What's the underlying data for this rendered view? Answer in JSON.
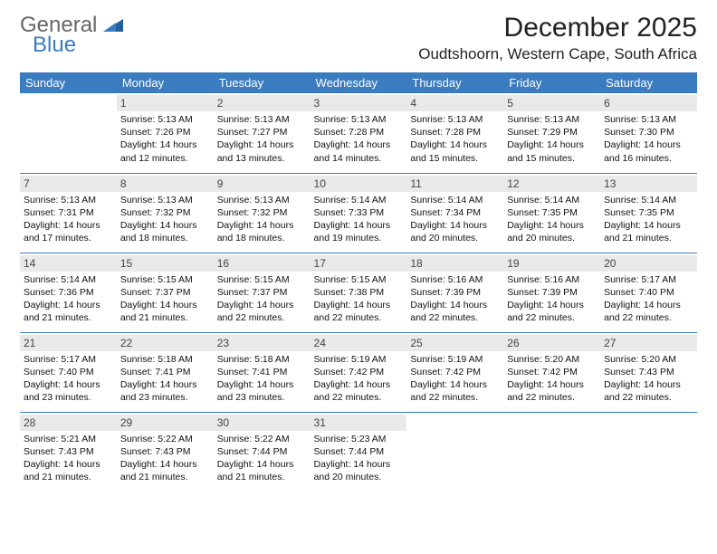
{
  "brand": {
    "line1": "General",
    "line2": "Blue"
  },
  "title": "December 2025",
  "location": "Oudtshoorn, Western Cape, South Africa",
  "colors": {
    "header_bg": "#3b7bbf",
    "header_text": "#ffffff",
    "daynum_bg": "#e9e9e9",
    "row_border": "#3b7bbf",
    "page_bg": "#ffffff",
    "body_text": "#111111",
    "title_text": "#222222",
    "brand_gray": "#666666",
    "brand_blue": "#3b7bbf"
  },
  "fonts": {
    "title_size_pt": 30,
    "location_size_pt": 17,
    "dayhead_size_pt": 13,
    "daynum_size_pt": 12,
    "cell_size_pt": 10.5
  },
  "calendar": {
    "type": "table",
    "columns": [
      "Sunday",
      "Monday",
      "Tuesday",
      "Wednesday",
      "Thursday",
      "Friday",
      "Saturday"
    ],
    "first_weekday_index": 1,
    "days": [
      {
        "n": "1",
        "sunrise": "5:13 AM",
        "sunset": "7:26 PM",
        "daylight": "14 hours and 12 minutes."
      },
      {
        "n": "2",
        "sunrise": "5:13 AM",
        "sunset": "7:27 PM",
        "daylight": "14 hours and 13 minutes."
      },
      {
        "n": "3",
        "sunrise": "5:13 AM",
        "sunset": "7:28 PM",
        "daylight": "14 hours and 14 minutes."
      },
      {
        "n": "4",
        "sunrise": "5:13 AM",
        "sunset": "7:28 PM",
        "daylight": "14 hours and 15 minutes."
      },
      {
        "n": "5",
        "sunrise": "5:13 AM",
        "sunset": "7:29 PM",
        "daylight": "14 hours and 15 minutes."
      },
      {
        "n": "6",
        "sunrise": "5:13 AM",
        "sunset": "7:30 PM",
        "daylight": "14 hours and 16 minutes."
      },
      {
        "n": "7",
        "sunrise": "5:13 AM",
        "sunset": "7:31 PM",
        "daylight": "14 hours and 17 minutes."
      },
      {
        "n": "8",
        "sunrise": "5:13 AM",
        "sunset": "7:32 PM",
        "daylight": "14 hours and 18 minutes."
      },
      {
        "n": "9",
        "sunrise": "5:13 AM",
        "sunset": "7:32 PM",
        "daylight": "14 hours and 18 minutes."
      },
      {
        "n": "10",
        "sunrise": "5:14 AM",
        "sunset": "7:33 PM",
        "daylight": "14 hours and 19 minutes."
      },
      {
        "n": "11",
        "sunrise": "5:14 AM",
        "sunset": "7:34 PM",
        "daylight": "14 hours and 20 minutes."
      },
      {
        "n": "12",
        "sunrise": "5:14 AM",
        "sunset": "7:35 PM",
        "daylight": "14 hours and 20 minutes."
      },
      {
        "n": "13",
        "sunrise": "5:14 AM",
        "sunset": "7:35 PM",
        "daylight": "14 hours and 21 minutes."
      },
      {
        "n": "14",
        "sunrise": "5:14 AM",
        "sunset": "7:36 PM",
        "daylight": "14 hours and 21 minutes."
      },
      {
        "n": "15",
        "sunrise": "5:15 AM",
        "sunset": "7:37 PM",
        "daylight": "14 hours and 21 minutes."
      },
      {
        "n": "16",
        "sunrise": "5:15 AM",
        "sunset": "7:37 PM",
        "daylight": "14 hours and 22 minutes."
      },
      {
        "n": "17",
        "sunrise": "5:15 AM",
        "sunset": "7:38 PM",
        "daylight": "14 hours and 22 minutes."
      },
      {
        "n": "18",
        "sunrise": "5:16 AM",
        "sunset": "7:39 PM",
        "daylight": "14 hours and 22 minutes."
      },
      {
        "n": "19",
        "sunrise": "5:16 AM",
        "sunset": "7:39 PM",
        "daylight": "14 hours and 22 minutes."
      },
      {
        "n": "20",
        "sunrise": "5:17 AM",
        "sunset": "7:40 PM",
        "daylight": "14 hours and 22 minutes."
      },
      {
        "n": "21",
        "sunrise": "5:17 AM",
        "sunset": "7:40 PM",
        "daylight": "14 hours and 23 minutes."
      },
      {
        "n": "22",
        "sunrise": "5:18 AM",
        "sunset": "7:41 PM",
        "daylight": "14 hours and 23 minutes."
      },
      {
        "n": "23",
        "sunrise": "5:18 AM",
        "sunset": "7:41 PM",
        "daylight": "14 hours and 23 minutes."
      },
      {
        "n": "24",
        "sunrise": "5:19 AM",
        "sunset": "7:42 PM",
        "daylight": "14 hours and 22 minutes."
      },
      {
        "n": "25",
        "sunrise": "5:19 AM",
        "sunset": "7:42 PM",
        "daylight": "14 hours and 22 minutes."
      },
      {
        "n": "26",
        "sunrise": "5:20 AM",
        "sunset": "7:42 PM",
        "daylight": "14 hours and 22 minutes."
      },
      {
        "n": "27",
        "sunrise": "5:20 AM",
        "sunset": "7:43 PM",
        "daylight": "14 hours and 22 minutes."
      },
      {
        "n": "28",
        "sunrise": "5:21 AM",
        "sunset": "7:43 PM",
        "daylight": "14 hours and 21 minutes."
      },
      {
        "n": "29",
        "sunrise": "5:22 AM",
        "sunset": "7:43 PM",
        "daylight": "14 hours and 21 minutes."
      },
      {
        "n": "30",
        "sunrise": "5:22 AM",
        "sunset": "7:44 PM",
        "daylight": "14 hours and 21 minutes."
      },
      {
        "n": "31",
        "sunrise": "5:23 AM",
        "sunset": "7:44 PM",
        "daylight": "14 hours and 20 minutes."
      }
    ],
    "labels": {
      "sunrise": "Sunrise:",
      "sunset": "Sunset:",
      "daylight": "Daylight:"
    }
  }
}
